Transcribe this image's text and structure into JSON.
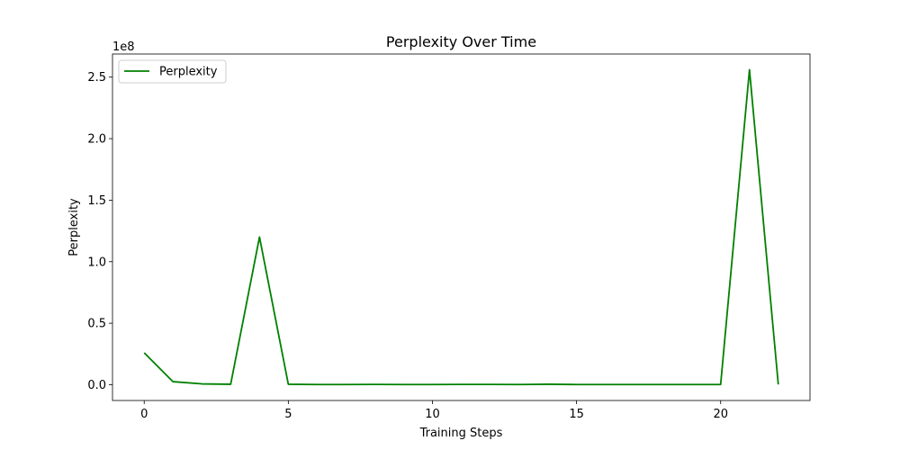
{
  "chart_data": {
    "type": "line",
    "title": "Perplexity Over Time",
    "xlabel": "Training Steps",
    "ylabel": "Perplexity",
    "y_offset_label": "1e8",
    "xlim": [
      -1.1,
      23.1
    ],
    "ylim": [
      -12800000,
      268800000
    ],
    "x_ticks": [
      0,
      5,
      10,
      15,
      20
    ],
    "x_tick_labels": [
      "0",
      "5",
      "10",
      "15",
      "20"
    ],
    "y_ticks": [
      0,
      50000000,
      100000000,
      150000000,
      200000000,
      250000000
    ],
    "y_tick_labels": [
      "0.0",
      "0.5",
      "1.0",
      "1.5",
      "2.0",
      "2.5"
    ],
    "grid": false,
    "legend_position": "upper left",
    "series": [
      {
        "name": "Perplexity",
        "color": "#008000",
        "x": [
          0,
          1,
          2,
          3,
          4,
          5,
          6,
          7,
          8,
          9,
          10,
          11,
          12,
          13,
          14,
          15,
          16,
          17,
          18,
          19,
          20,
          21,
          22
        ],
        "values": [
          26000000,
          2500000,
          700000,
          400000,
          120000000,
          400000,
          200000,
          200000,
          300000,
          200000,
          200000,
          300000,
          300000,
          200000,
          400000,
          200000,
          200000,
          200000,
          200000,
          200000,
          200000,
          256000000,
          200000
        ]
      }
    ]
  }
}
